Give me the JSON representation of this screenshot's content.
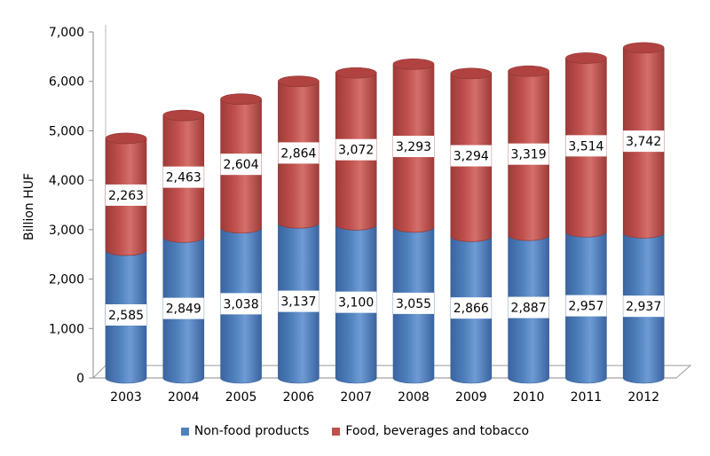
{
  "chart_data": {
    "type": "bar",
    "stacked": true,
    "style": "3d-cylinder",
    "categories": [
      "2003",
      "2004",
      "2005",
      "2006",
      "2007",
      "2008",
      "2009",
      "2010",
      "2011",
      "2012"
    ],
    "series": [
      {
        "name": "Non-food products",
        "values": [
          2585,
          2849,
          3038,
          3137,
          3100,
          3055,
          2866,
          2887,
          2957,
          2937
        ],
        "color": "#4f81bd"
      },
      {
        "name": "Food, beverages and tobacco",
        "values": [
          2263,
          2463,
          2604,
          2864,
          3072,
          3293,
          3294,
          3319,
          3514,
          3742
        ],
        "color": "#c0504d"
      }
    ],
    "data_labels": {
      "Non-food products": [
        "2,585",
        "2,849",
        "3,038",
        "3,137",
        "3,100",
        "3,055",
        "2,866",
        "2,887",
        "2,957",
        "2,937"
      ],
      "Food, beverages and tobacco": [
        "2,263",
        "2,463",
        "2,604",
        "2,864",
        "3,072",
        "3,293",
        "3,294",
        "3,319",
        "3,514",
        "3,742"
      ]
    },
    "ylabel": "Billion HUF",
    "xlabel": "",
    "ylim": [
      0,
      7000
    ],
    "yticks": [
      0,
      1000,
      2000,
      3000,
      4000,
      5000,
      6000,
      7000
    ],
    "ytick_labels": [
      "0",
      "1,000",
      "2,000",
      "3,000",
      "4,000",
      "5,000",
      "6,000",
      "7,000"
    ],
    "grid": false,
    "legend_position": "bottom"
  }
}
